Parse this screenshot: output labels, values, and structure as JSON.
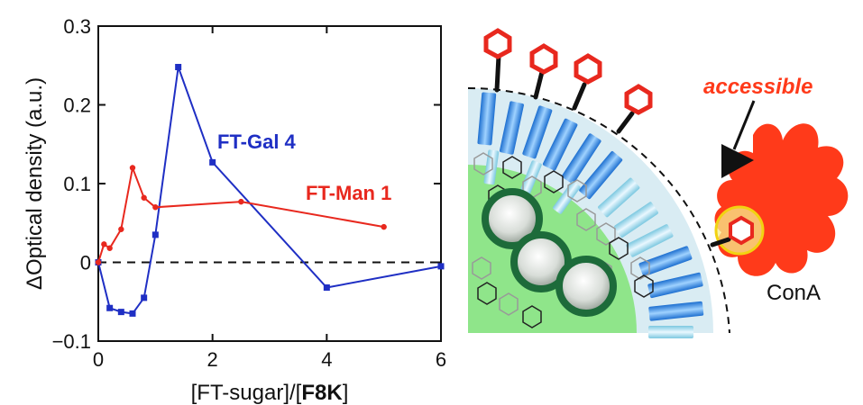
{
  "chart_data": {
    "type": "line",
    "xlabel": "[FT-sugar]/[F8K]",
    "xlabel_plain": "[FT-sugar]/[",
    "xlabel_bold": "F8K",
    "xlabel_end": "]",
    "ylabel": "ΔOptical density (a.u.)",
    "xlim": [
      0,
      6
    ],
    "ylim": [
      -0.1,
      0.3
    ],
    "xticks": [
      0,
      2,
      4,
      6
    ],
    "yticks": [
      -0.1,
      0,
      0.1,
      0.2,
      0.3
    ],
    "xtick_labels": [
      "0",
      "2",
      "4",
      "6"
    ],
    "ytick_labels": [
      "−0.1",
      "0",
      "0.1",
      "0.2",
      "0.3"
    ],
    "zero_line": "dashed",
    "grid": false,
    "series": [
      {
        "name": "FT-Gal 4",
        "color": "#1f2fc4",
        "marker": "square",
        "x": [
          0,
          0.2,
          0.4,
          0.6,
          0.8,
          1.0,
          1.4,
          2.0,
          4.0,
          6.0
        ],
        "y": [
          0,
          -0.058,
          -0.063,
          -0.065,
          -0.045,
          0.035,
          0.248,
          0.127,
          -0.032,
          -0.005
        ]
      },
      {
        "name": "FT-Man 1",
        "color": "#e8281e",
        "marker": "circle",
        "x": [
          0,
          0.1,
          0.2,
          0.4,
          0.6,
          0.8,
          1.0,
          2.5,
          5.0
        ],
        "y": [
          0,
          0.023,
          0.018,
          0.042,
          0.12,
          0.082,
          0.07,
          0.077,
          0.045
        ]
      }
    ]
  },
  "schematic": {
    "accessible_label": "accessible",
    "cona_label": "ConA",
    "colors": {
      "shell": "#d9ecf3",
      "core": "#8fe58a",
      "rods": "#3f8fe0",
      "sugar": "#e8281e",
      "highlight": "#f7ef8c",
      "protein": "#ff3a1a",
      "accent_text": "#ff3a1a"
    }
  }
}
